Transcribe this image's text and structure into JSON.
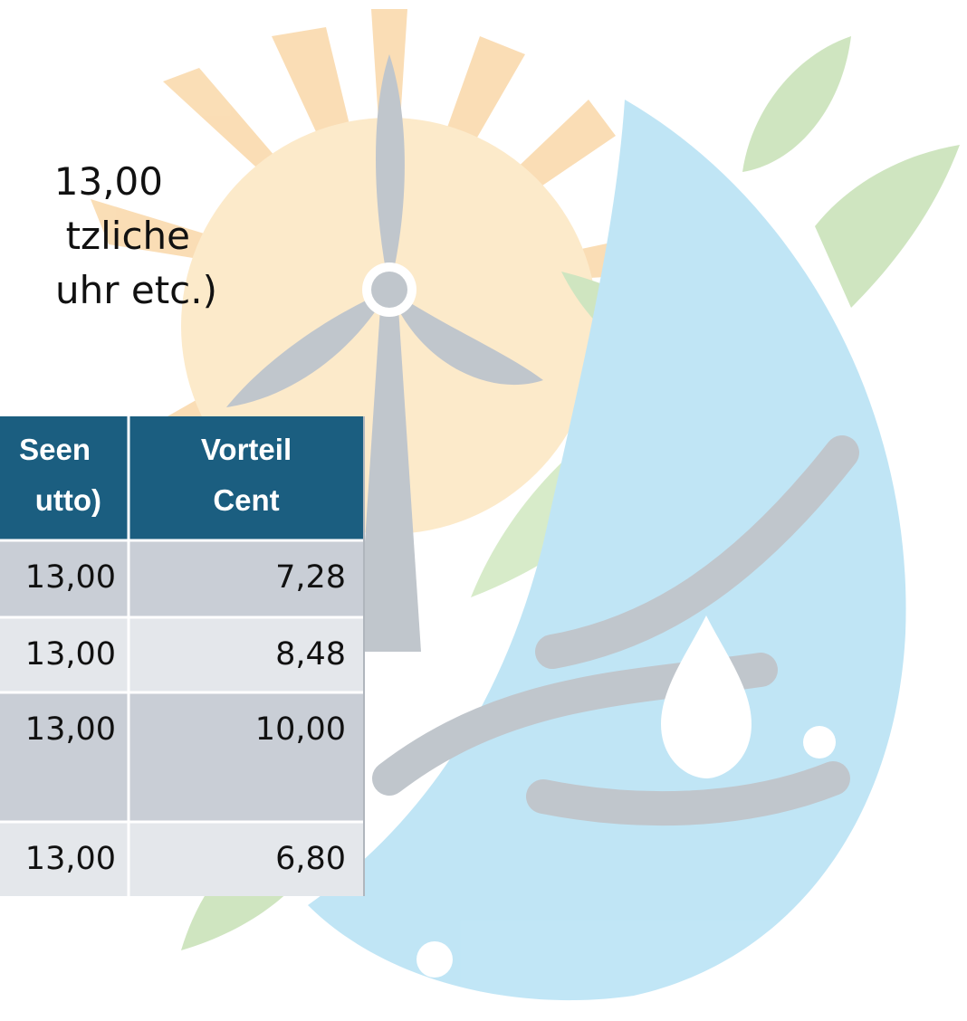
{
  "text": {
    "lines": [
      "13,00",
      "tzliche",
      "uhr etc.)"
    ]
  },
  "table": {
    "header": [
      [
        "Seen",
        "utto)"
      ],
      [
        "Vorteil",
        "Cent"
      ]
    ],
    "rows": [
      [
        "13,00",
        "7,28"
      ],
      [
        "13,00",
        "8,48"
      ],
      [
        "13,00",
        "10,00"
      ],
      [
        "13,00",
        "6,80"
      ]
    ]
  }
}
